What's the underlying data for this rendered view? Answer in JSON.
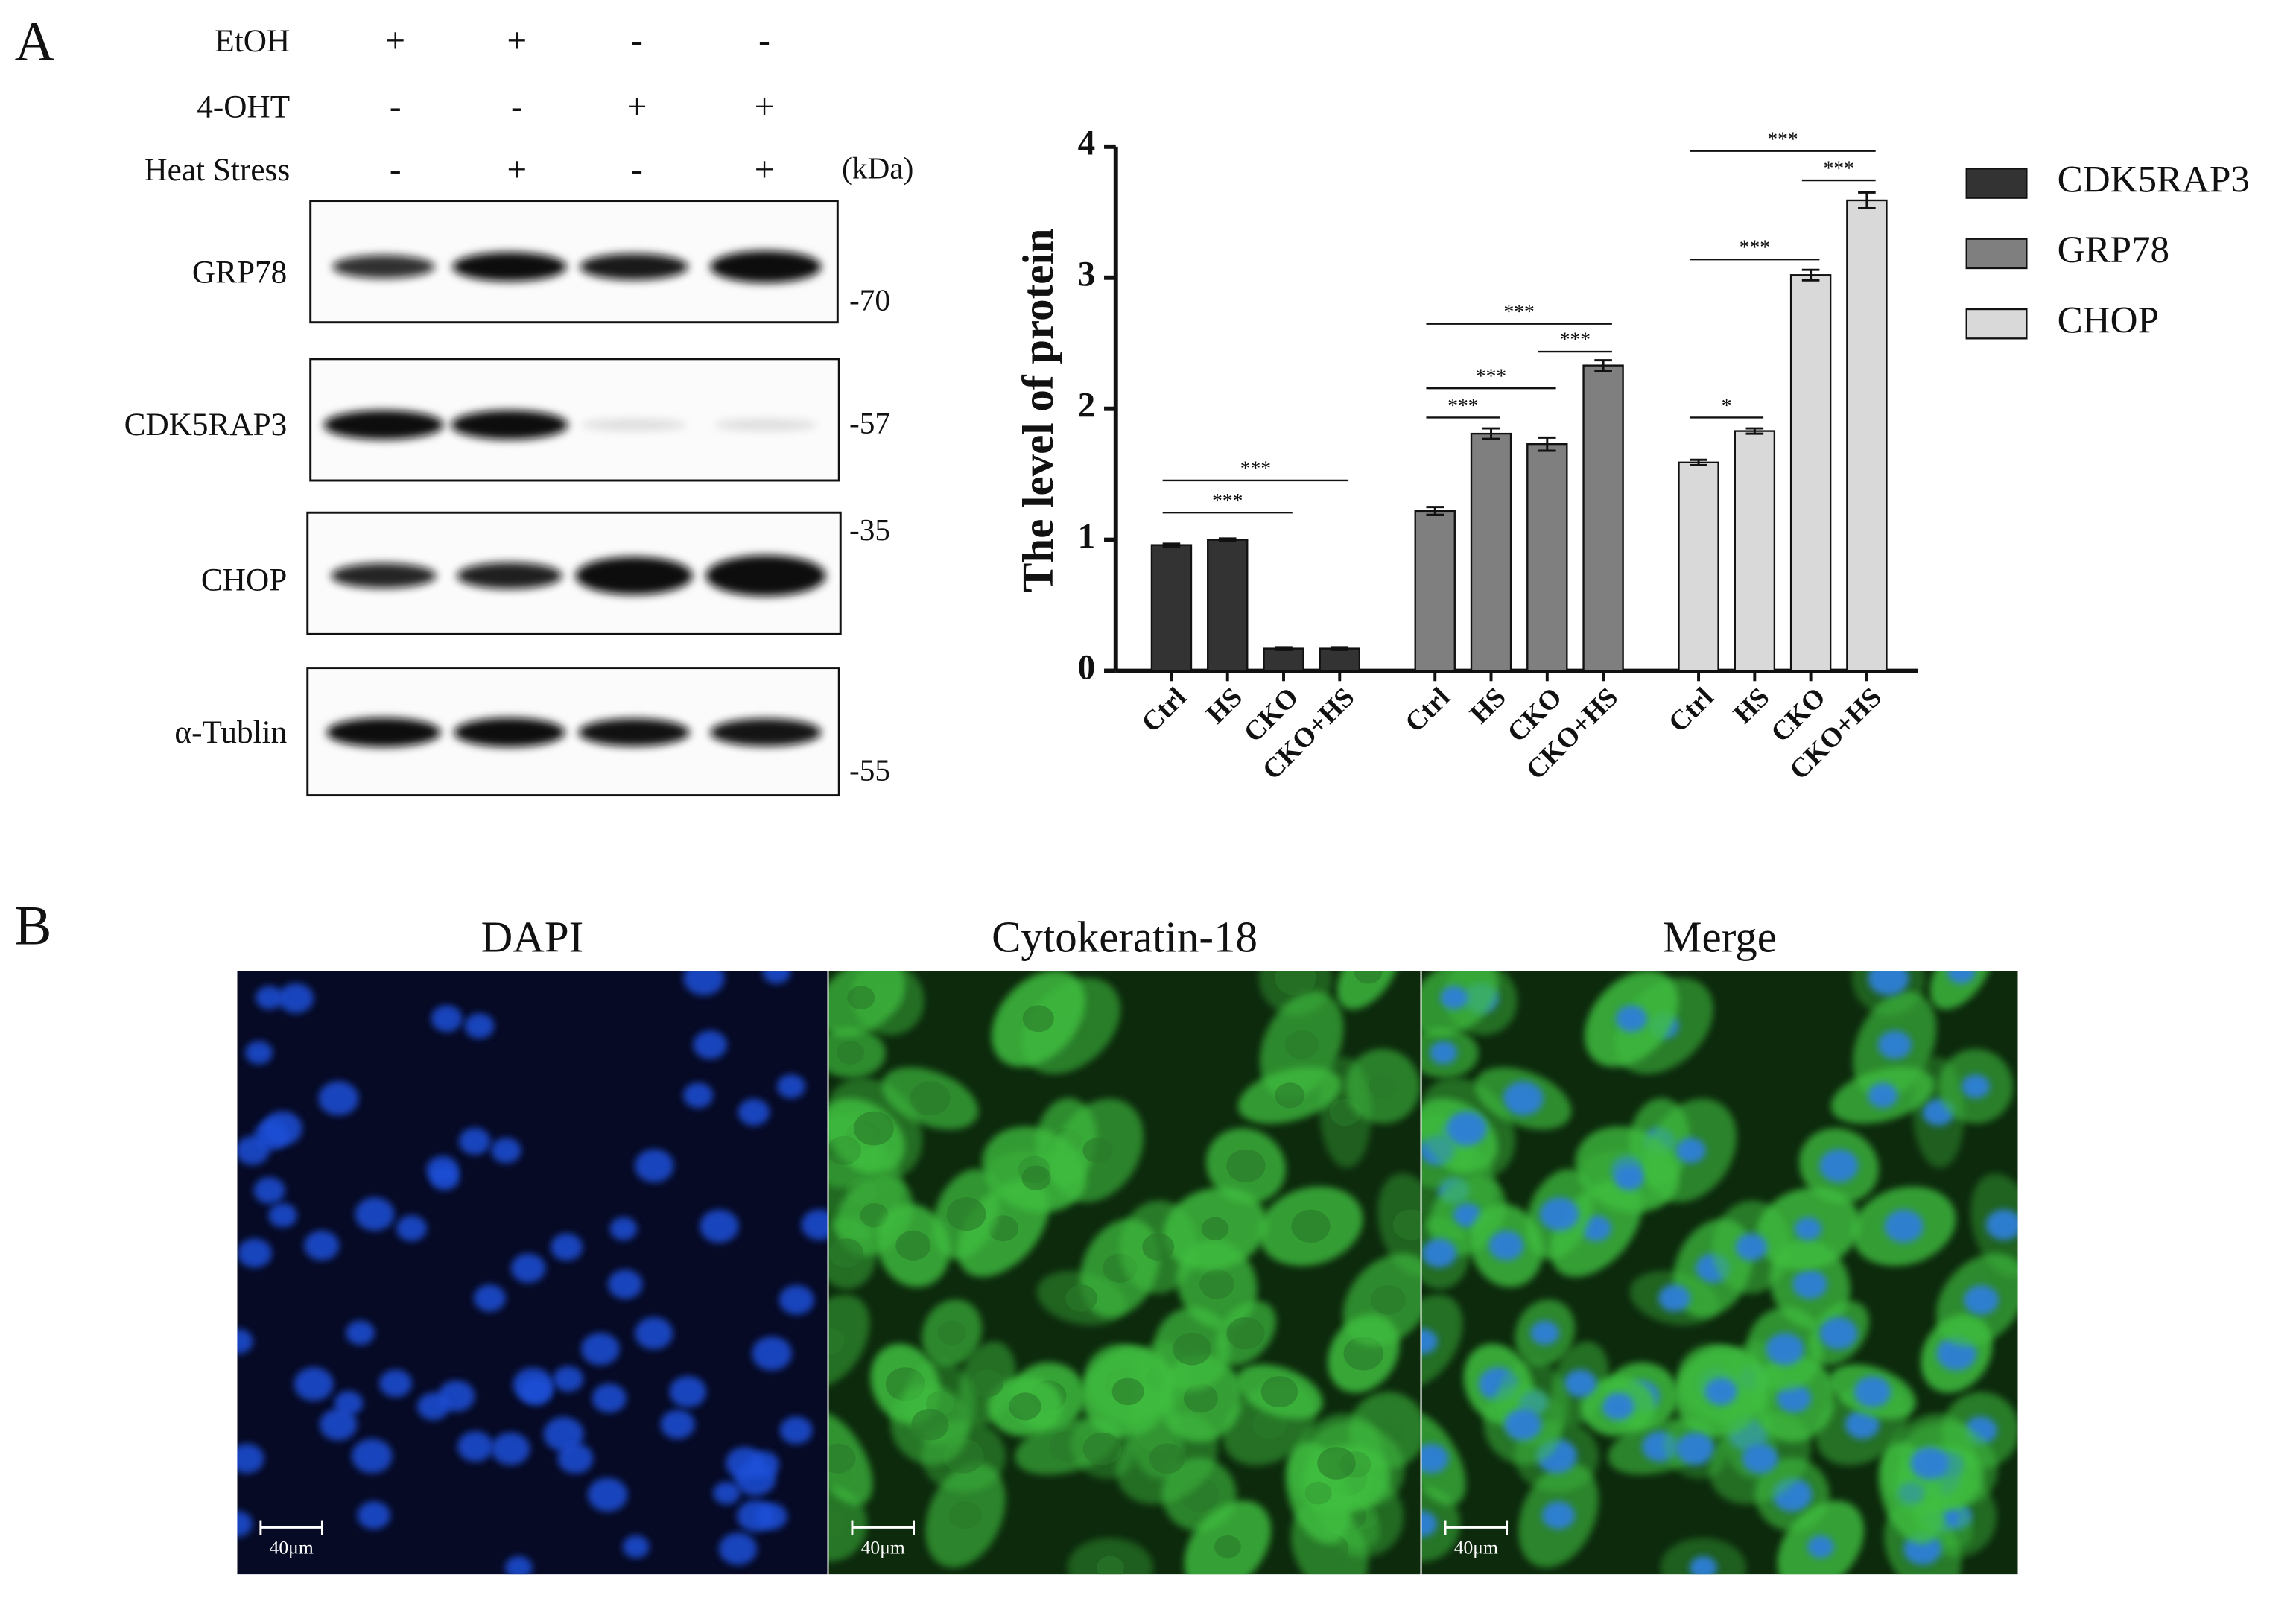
{
  "figure": {
    "panel_a": {
      "label": "A",
      "conditions": [
        {
          "name": "EtOH",
          "signs": [
            "+",
            "+",
            "-",
            "-"
          ]
        },
        {
          "name": "4-OHT",
          "signs": [
            "-",
            "-",
            "+",
            "+"
          ]
        },
        {
          "name": "Heat Stress",
          "signs": [
            "-",
            "+",
            "-",
            "+"
          ]
        }
      ],
      "unit": "(kDa)",
      "blots": [
        {
          "name": "GRP78",
          "marker": "-70"
        },
        {
          "name": "CDK5RAP3",
          "marker": "-57"
        },
        {
          "name": "CHOP",
          "marker": "-35"
        },
        {
          "name": "α-Tublin",
          "marker": "-55"
        }
      ]
    },
    "panel_b": {
      "label": "B",
      "images": [
        {
          "title": "DAPI",
          "scale_bar": "40μm"
        },
        {
          "title": "Cytokeratin-18",
          "scale_bar": "40μm"
        },
        {
          "title": "Merge",
          "scale_bar": "40μm"
        }
      ]
    }
  },
  "chart_data": {
    "type": "bar",
    "y_label": "The level of protein",
    "categories": [
      "Ctrl",
      "HS",
      "CKO",
      "CKO+HS"
    ],
    "series": [
      {
        "name": "CDK5RAP3",
        "color": "#333333",
        "values": [
          0.96,
          1.0,
          0.17,
          0.17
        ],
        "errors": [
          0.01,
          0.01,
          0.01,
          0.01
        ]
      },
      {
        "name": "GRP78",
        "color": "#7f7f7f",
        "values": [
          1.22,
          1.81,
          1.73,
          2.33
        ],
        "errors": [
          0.03,
          0.04,
          0.05,
          0.04
        ]
      },
      {
        "name": "CHOP",
        "color": "#d9d9d9",
        "values": [
          1.59,
          1.83,
          3.02,
          3.59
        ],
        "errors": [
          0.02,
          0.02,
          0.04,
          0.06
        ]
      }
    ],
    "ylim": [
      0,
      4
    ],
    "yticks": [
      0,
      1,
      2,
      3,
      4
    ],
    "legend": "right",
    "annotations": [
      "***",
      "***",
      "***",
      "***",
      "***",
      "***",
      "*",
      "***",
      "***",
      "***"
    ]
  }
}
